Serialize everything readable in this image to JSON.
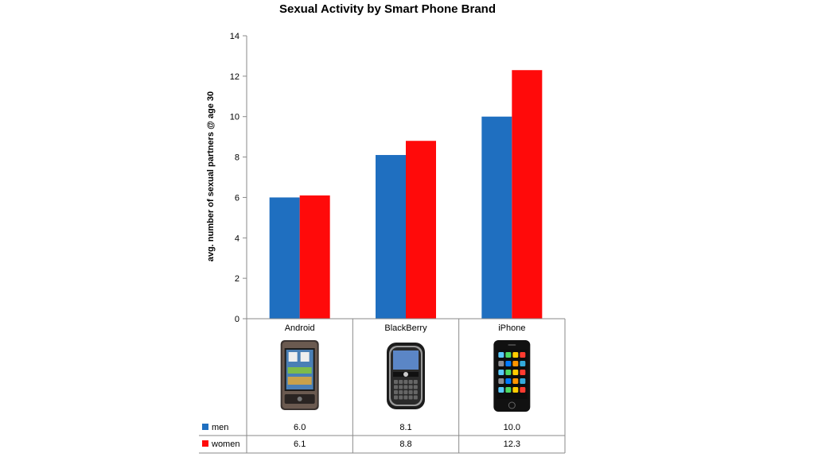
{
  "chart_data": {
    "type": "bar",
    "title": "Sexual Activity by Smart Phone Brand",
    "xlabel": "",
    "ylabel": "avg. number of sexual partners @ age 30",
    "ylim": [
      0,
      14
    ],
    "yticks": [
      0,
      2,
      4,
      6,
      8,
      10,
      12,
      14
    ],
    "categories": [
      "Android",
      "BlackBerry",
      "iPhone"
    ],
    "series": [
      {
        "name": "men",
        "values": [
          6.0,
          8.1,
          10.0
        ],
        "labels": [
          "6.0",
          "8.1",
          "10.0"
        ],
        "color": "#1f6fc0"
      },
      {
        "name": "women",
        "values": [
          6.1,
          8.8,
          12.3
        ],
        "labels": [
          "6.1",
          "8.8",
          "12.3"
        ],
        "color": "#ff0a0a"
      }
    ],
    "grid": false,
    "legend": "data-table-below",
    "category_icons": [
      "android-phone-icon",
      "blackberry-phone-icon",
      "iphone-icon"
    ]
  }
}
